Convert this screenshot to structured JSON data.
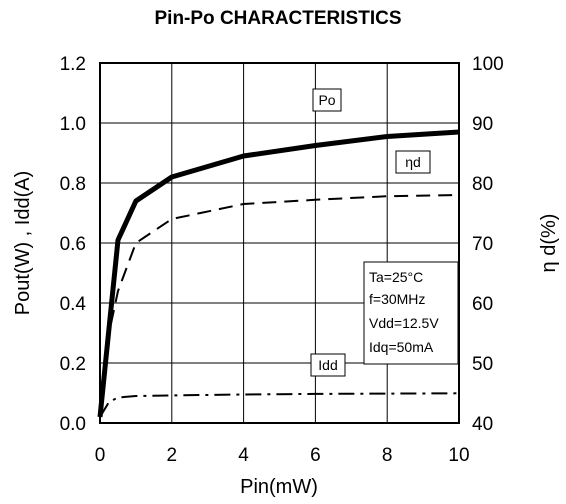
{
  "chart_data": {
    "type": "line",
    "title": "Pin-Po CHARACTERISTICS",
    "xlabel": "Pin(mW)",
    "ylabel": "Pout(W) , Idd(A)",
    "y2label": "η d(%)",
    "xlim": [
      0,
      10
    ],
    "ylim": [
      0,
      1.2
    ],
    "y2lim": [
      40,
      100
    ],
    "xticks": [
      "0",
      "2",
      "4",
      "6",
      "8",
      "10"
    ],
    "yticks": [
      "0.0",
      "0.2",
      "0.4",
      "0.6",
      "0.8",
      "1.0",
      "1.2"
    ],
    "y2ticks": [
      "40",
      "50",
      "60",
      "70",
      "80",
      "90",
      "100"
    ],
    "grid": true,
    "series": [
      {
        "name": "Po",
        "axis": "left",
        "style": "solid",
        "x": [
          0,
          0.5,
          1,
          2,
          4,
          6,
          8,
          10
        ],
        "y": [
          0.02,
          0.61,
          0.74,
          0.82,
          0.89,
          0.925,
          0.955,
          0.97
        ]
      },
      {
        "name": "ηd",
        "axis": "right",
        "style": "dashed",
        "x": [
          0,
          0.25,
          0.5,
          1,
          2,
          4,
          6,
          8,
          10
        ],
        "y": [
          42,
          55,
          62,
          70,
          74,
          76.5,
          77.2,
          77.8,
          78
        ]
      },
      {
        "name": "Idd",
        "axis": "left",
        "style": "dashdot",
        "x": [
          0,
          0.25,
          0.5,
          1,
          2,
          4,
          6,
          8,
          10
        ],
        "y": [
          0.02,
          0.07,
          0.085,
          0.09,
          0.092,
          0.095,
          0.097,
          0.098,
          0.099
        ]
      }
    ],
    "annotations": [
      "Po",
      "ηd",
      "Idd"
    ],
    "conditions": [
      "Ta=25°C",
      "f=30MHz",
      "Vdd=12.5V",
      "Idq=50mA"
    ]
  }
}
